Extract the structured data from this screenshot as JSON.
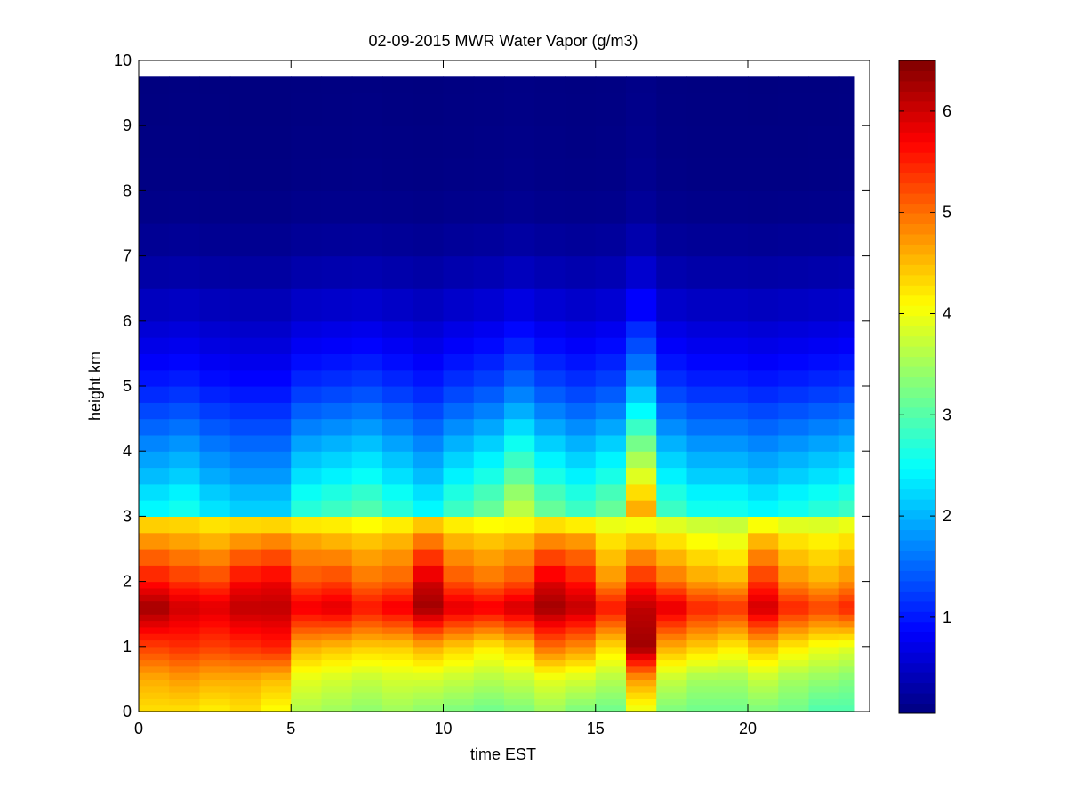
{
  "chart_data": {
    "type": "heatmap",
    "title": "02-09-2015 MWR Water Vapor (g/m3)",
    "xlabel": "time EST",
    "ylabel": "height km",
    "xlim": [
      0,
      24
    ],
    "ylim": [
      0,
      10
    ],
    "xticks": [
      0,
      5,
      10,
      15,
      20
    ],
    "yticks": [
      0,
      1,
      2,
      3,
      4,
      5,
      6,
      7,
      8,
      9,
      10
    ],
    "colorbar": {
      "colormap": "jet",
      "clim": [
        0.05,
        6.5
      ],
      "ticks": [
        1,
        2,
        3,
        4,
        5,
        6
      ]
    },
    "data_extent": {
      "time_start": 0,
      "time_end": 23.5,
      "height_top": 9.75
    },
    "columns_time": [
      0,
      1,
      2,
      3,
      4,
      5,
      6,
      7,
      8,
      9,
      10,
      11,
      12,
      13,
      14,
      15,
      16,
      17,
      18,
      19,
      20,
      21,
      22,
      23
    ],
    "profile_heights_km": [
      0,
      0.1,
      0.2,
      0.3,
      0.4,
      0.5,
      0.6,
      0.7,
      0.8,
      0.9,
      1.0,
      1.1,
      1.2,
      1.3,
      1.4,
      1.5,
      1.6,
      1.7,
      1.8,
      1.9,
      2.0,
      2.25,
      2.5,
      2.75,
      3.0,
      3.25,
      3.5,
      3.75,
      4.0,
      4.25,
      4.5,
      4.75,
      5.0,
      5.25,
      5.5,
      5.75,
      6.0,
      6.5,
      7.0,
      7.5,
      8.0,
      8.5,
      9.0,
      9.5
    ],
    "low_layer_g_m3": {
      "heights_km": [
        0.05,
        0.5,
        1.0,
        1.6,
        2.0,
        2.6,
        3.0
      ],
      "values": [
        [
          4.3,
          4.6,
          5.3,
          6.3,
          5.6,
          4.8,
          4.2
        ],
        [
          4.3,
          4.7,
          5.4,
          6.0,
          5.4,
          4.7,
          4.2
        ],
        [
          4.2,
          4.6,
          5.3,
          5.9,
          5.3,
          4.6,
          4.1
        ],
        [
          4.3,
          4.6,
          5.4,
          6.1,
          5.7,
          4.8,
          4.1
        ],
        [
          4.1,
          4.5,
          5.5,
          6.1,
          5.8,
          4.9,
          4.1
        ],
        [
          3.6,
          3.9,
          4.6,
          5.8,
          5.2,
          4.7,
          4.0
        ],
        [
          3.5,
          3.8,
          4.5,
          5.9,
          5.3,
          4.6,
          4.0
        ],
        [
          3.4,
          3.7,
          4.4,
          5.6,
          5.0,
          4.5,
          3.9
        ],
        [
          3.5,
          3.8,
          4.4,
          5.8,
          5.1,
          4.6,
          4.0
        ],
        [
          3.4,
          3.8,
          4.6,
          6.3,
          6.0,
          5.0,
          4.2
        ],
        [
          3.3,
          3.7,
          4.4,
          5.9,
          5.2,
          4.6,
          4.0
        ],
        [
          3.2,
          3.6,
          4.2,
          5.8,
          5.0,
          4.5,
          3.9
        ],
        [
          3.3,
          3.7,
          4.4,
          6.0,
          5.2,
          4.6,
          3.9
        ],
        [
          3.5,
          3.9,
          5.0,
          6.3,
          5.9,
          4.9,
          4.0
        ],
        [
          3.3,
          3.8,
          4.8,
          6.1,
          5.6,
          4.8,
          3.9
        ],
        [
          3.2,
          3.6,
          4.3,
          5.6,
          4.8,
          4.3,
          3.8
        ],
        [
          4.0,
          4.7,
          6.3,
          6.1,
          5.5,
          4.5,
          3.8
        ],
        [
          3.3,
          3.7,
          4.6,
          5.9,
          5.0,
          4.3,
          3.7
        ],
        [
          3.2,
          3.5,
          4.4,
          5.5,
          4.7,
          4.1,
          3.6
        ],
        [
          3.2,
          3.5,
          4.2,
          5.4,
          4.6,
          4.0,
          3.6
        ],
        [
          3.3,
          3.7,
          4.5,
          6.0,
          5.4,
          4.6,
          3.8
        ],
        [
          3.2,
          3.5,
          4.2,
          5.5,
          4.8,
          4.3,
          3.7
        ],
        [
          3.0,
          3.4,
          4.0,
          5.3,
          4.6,
          4.2,
          3.7
        ],
        [
          3.0,
          3.3,
          3.9,
          5.5,
          4.8,
          4.3,
          3.8
        ]
      ]
    },
    "upper_layer_g_m3": {
      "heights_km": [
        3.2,
        3.6,
        4.0,
        4.5,
        5.0,
        5.5,
        6.0,
        6.5,
        7.0,
        7.5,
        8.0,
        9.75
      ],
      "base_profile": [
        2.7,
        2.3,
        2.0,
        1.55,
        1.15,
        0.85,
        0.6,
        0.4,
        0.25,
        0.15,
        0.09,
        0.06
      ],
      "column_moisture_factor": [
        0.9,
        0.95,
        0.85,
        0.8,
        0.8,
        1.0,
        1.05,
        1.1,
        1.0,
        0.9,
        1.05,
        1.15,
        1.35,
        1.15,
        1.05,
        1.15,
        1.7,
        1.05,
        0.95,
        0.95,
        0.9,
        0.95,
        1.0,
        1.05
      ]
    }
  }
}
